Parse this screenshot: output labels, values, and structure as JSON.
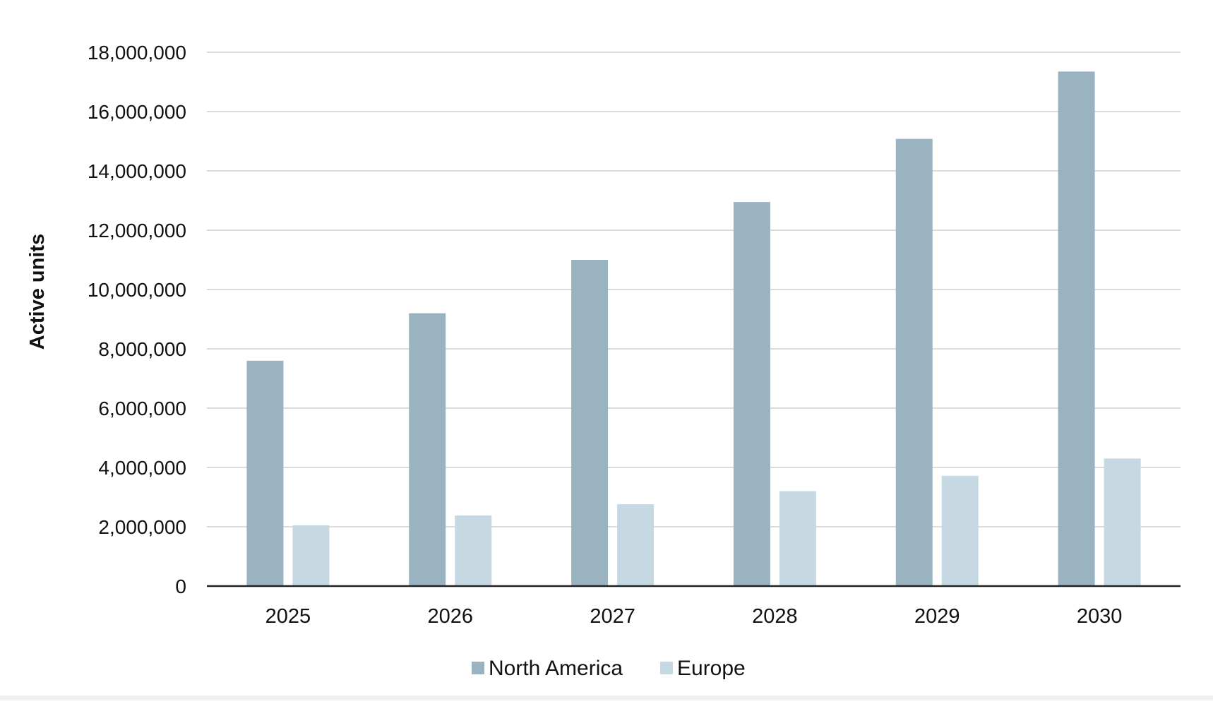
{
  "chart_data": {
    "type": "bar",
    "title": "",
    "xlabel": "",
    "ylabel": "Active units",
    "categories": [
      "2025",
      "2026",
      "2027",
      "2028",
      "2029",
      "2030"
    ],
    "series": [
      {
        "name": "North America",
        "color": "#9ab3c1",
        "values": [
          7600000,
          9200000,
          11000000,
          12950000,
          15080000,
          17350000
        ]
      },
      {
        "name": "Europe",
        "color": "#c6d9e3",
        "values": [
          2050000,
          2380000,
          2760000,
          3200000,
          3720000,
          4300000
        ]
      }
    ],
    "ylim": [
      0,
      18000000
    ],
    "yticks": [
      0,
      2000000,
      4000000,
      6000000,
      8000000,
      10000000,
      12000000,
      14000000,
      16000000,
      18000000
    ],
    "ytick_labels": [
      "0",
      "2,000,000",
      "4,000,000",
      "6,000,000",
      "8,000,000",
      "10,000,000",
      "12,000,000",
      "14,000,000",
      "16,000,000",
      "18,000,000"
    ],
    "grid": true,
    "legend_position": "bottom-center"
  }
}
